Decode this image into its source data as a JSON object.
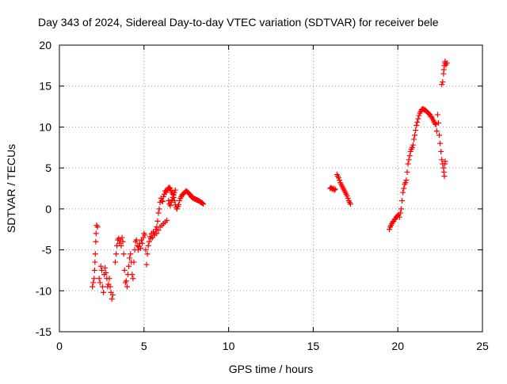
{
  "chart_data": {
    "type": "scatter",
    "title": "Day 343 of 2024, Sidereal Day-to-day VTEC variation (SDTVAR) for receiver bele",
    "xlabel": "GPS time / hours",
    "ylabel": "SDTVAR / TECUs",
    "xlim": [
      0,
      25
    ],
    "ylim": [
      -15,
      20
    ],
    "xticks": [
      0,
      5,
      10,
      15,
      20,
      25
    ],
    "yticks": [
      -15,
      -10,
      -5,
      0,
      5,
      10,
      15,
      20
    ],
    "grid": true,
    "marker": "plus",
    "color": "#ff0000",
    "segments": [
      {
        "name": "seg1",
        "points": [
          [
            1.95,
            -9.5
          ],
          [
            2.0,
            -9.0
          ],
          [
            2.05,
            -8.5
          ],
          [
            2.08,
            -7.5
          ],
          [
            2.1,
            -6.5
          ],
          [
            2.12,
            -5.5
          ],
          [
            2.15,
            -4.0
          ],
          [
            2.17,
            -3.0
          ],
          [
            2.2,
            -2.0
          ],
          [
            2.25,
            -2.2
          ]
        ]
      },
      {
        "name": "seg2",
        "points": [
          [
            2.35,
            -8.5
          ],
          [
            2.4,
            -9.0
          ],
          [
            2.45,
            -7.0
          ],
          [
            2.5,
            -7.5
          ],
          [
            2.55,
            -9.5
          ],
          [
            2.6,
            -10.2
          ],
          [
            2.65,
            -8.0
          ],
          [
            2.7,
            -7.2
          ],
          [
            2.75,
            -7.8
          ],
          [
            2.8,
            -8.5
          ],
          [
            2.85,
            -9.5
          ],
          [
            2.9,
            -9.2
          ],
          [
            2.95,
            -8.5
          ],
          [
            3.0,
            -9.5
          ],
          [
            3.05,
            -10.2
          ],
          [
            3.1,
            -11.0
          ],
          [
            3.15,
            -10.5
          ]
        ]
      },
      {
        "name": "seg3",
        "points": [
          [
            3.3,
            -6.5
          ],
          [
            3.35,
            -5.5
          ],
          [
            3.4,
            -4.5
          ],
          [
            3.45,
            -3.8
          ],
          [
            3.5,
            -3.6
          ],
          [
            3.55,
            -4.2
          ],
          [
            3.6,
            -3.8
          ],
          [
            3.65,
            -4.5
          ],
          [
            3.7,
            -3.5
          ],
          [
            3.75,
            -4.0
          ],
          [
            3.8,
            -5.5
          ],
          [
            3.85,
            -7.5
          ],
          [
            3.9,
            -9.0
          ],
          [
            3.95,
            -8.8
          ],
          [
            4.0,
            -9.5
          ],
          [
            4.05,
            -8.0
          ],
          [
            4.1,
            -7.0
          ],
          [
            4.15,
            -6.0
          ],
          [
            4.2,
            -5.5
          ],
          [
            4.25,
            -6.5
          ],
          [
            4.3,
            -8.0
          ],
          [
            4.35,
            -8.5
          ],
          [
            4.4,
            -6.5
          ],
          [
            4.45,
            -5.0
          ],
          [
            4.5,
            -4.0
          ],
          [
            4.55,
            -3.8
          ],
          [
            4.6,
            -4.5
          ],
          [
            4.65,
            -5.0
          ],
          [
            4.7,
            -4.6
          ],
          [
            4.75,
            -4.2
          ],
          [
            4.8,
            -4.8
          ],
          [
            4.85,
            -3.8
          ],
          [
            4.9,
            -4.2
          ],
          [
            4.95,
            -3.5
          ],
          [
            5.0,
            -3.0
          ],
          [
            5.05,
            -3.2
          ],
          [
            5.1,
            -5.0
          ],
          [
            5.15,
            -6.8
          ],
          [
            5.2,
            -5.5
          ],
          [
            5.25,
            -4.5
          ],
          [
            5.3,
            -4.0
          ],
          [
            5.35,
            -3.4
          ],
          [
            5.4,
            -3.6
          ],
          [
            5.45,
            -3.0
          ],
          [
            5.5,
            -3.5
          ],
          [
            5.55,
            -2.8
          ],
          [
            5.6,
            -3.2
          ],
          [
            5.65,
            -3.0
          ],
          [
            5.7,
            -2.5
          ],
          [
            5.75,
            -2.2
          ],
          [
            5.8,
            -1.5
          ],
          [
            5.85,
            -0.5
          ],
          [
            5.9,
            0.0
          ],
          [
            5.95,
            0.8
          ],
          [
            6.0,
            1.3
          ],
          [
            6.05,
            1.0
          ],
          [
            6.1,
            0.9
          ],
          [
            6.15,
            1.5
          ],
          [
            6.2,
            1.8
          ],
          [
            6.25,
            2.2
          ],
          [
            6.3,
            2.0
          ],
          [
            6.35,
            2.3
          ]
        ]
      },
      {
        "name": "seg4",
        "points": [
          [
            5.75,
            -3.0
          ],
          [
            5.85,
            -2.6
          ],
          [
            5.95,
            -2.2
          ],
          [
            6.05,
            -2.0
          ],
          [
            6.15,
            -1.8
          ],
          [
            6.25,
            -1.6
          ],
          [
            6.35,
            -1.4
          ]
        ]
      },
      {
        "name": "seg5",
        "points": [
          [
            6.4,
            2.4
          ],
          [
            6.45,
            2.6
          ],
          [
            6.5,
            2.6
          ],
          [
            6.55,
            2.5
          ],
          [
            6.6,
            2.2
          ],
          [
            6.65,
            2.0
          ],
          [
            6.7,
            1.8
          ],
          [
            6.75,
            1.4
          ],
          [
            6.8,
            1.0
          ],
          [
            6.85,
            0.5
          ],
          [
            6.9,
            0.2
          ],
          [
            6.95,
            0.0
          ],
          [
            7.0,
            0.3
          ],
          [
            7.05,
            0.5
          ],
          [
            7.1,
            1.0
          ],
          [
            7.15,
            1.3
          ],
          [
            7.2,
            1.5
          ],
          [
            7.25,
            1.7
          ],
          [
            7.3,
            1.8
          ],
          [
            7.35,
            1.9
          ],
          [
            7.4,
            2.0
          ],
          [
            7.45,
            2.1
          ],
          [
            7.5,
            2.2
          ],
          [
            7.55,
            2.1
          ],
          [
            7.6,
            2.0
          ],
          [
            7.65,
            1.9
          ],
          [
            7.7,
            1.8
          ],
          [
            7.75,
            1.7
          ],
          [
            7.8,
            1.5
          ],
          [
            7.85,
            1.4
          ],
          [
            7.9,
            1.3
          ],
          [
            7.95,
            1.3
          ],
          [
            8.0,
            1.2
          ],
          [
            8.05,
            1.2
          ],
          [
            8.1,
            1.1
          ],
          [
            8.15,
            1.1
          ],
          [
            8.2,
            1.0
          ],
          [
            8.25,
            1.0
          ],
          [
            8.3,
            0.9
          ],
          [
            8.35,
            0.8
          ],
          [
            8.4,
            0.8
          ],
          [
            8.45,
            0.7
          ],
          [
            8.5,
            0.6
          ]
        ]
      },
      {
        "name": "seg6",
        "points": [
          [
            6.45,
            1.0
          ],
          [
            6.5,
            0.6
          ],
          [
            6.55,
            0.4
          ],
          [
            6.6,
            0.8
          ],
          [
            6.65,
            1.1
          ],
          [
            6.7,
            1.4
          ],
          [
            6.75,
            1.7
          ],
          [
            6.8,
            2.0
          ],
          [
            6.85,
            2.3
          ]
        ]
      },
      {
        "name": "seg7",
        "points": [
          [
            16.0,
            2.5
          ],
          [
            16.05,
            2.6
          ],
          [
            16.1,
            2.5
          ],
          [
            16.15,
            2.4
          ],
          [
            16.2,
            2.5
          ],
          [
            16.25,
            2.3
          ],
          [
            16.3,
            2.4
          ]
        ]
      },
      {
        "name": "seg8",
        "points": [
          [
            16.4,
            4.2
          ],
          [
            16.45,
            4.0
          ],
          [
            16.5,
            3.8
          ],
          [
            16.55,
            3.5
          ],
          [
            16.6,
            3.2
          ],
          [
            16.65,
            3.0
          ],
          [
            16.7,
            2.8
          ],
          [
            16.75,
            2.6
          ],
          [
            16.8,
            2.4
          ],
          [
            16.85,
            2.2
          ],
          [
            16.9,
            2.0
          ],
          [
            16.95,
            1.8
          ],
          [
            17.0,
            1.6
          ],
          [
            17.05,
            1.3
          ],
          [
            17.1,
            1.0
          ],
          [
            17.15,
            0.8
          ],
          [
            17.2,
            0.6
          ]
        ]
      },
      {
        "name": "seg9",
        "points": [
          [
            19.5,
            -2.5
          ],
          [
            19.55,
            -2.2
          ],
          [
            19.6,
            -2.0
          ],
          [
            19.65,
            -1.8
          ],
          [
            19.7,
            -1.6
          ],
          [
            19.75,
            -1.5
          ],
          [
            19.8,
            -1.3
          ],
          [
            19.85,
            -1.2
          ],
          [
            19.9,
            -1.0
          ],
          [
            19.95,
            -0.9
          ],
          [
            20.0,
            -0.8
          ],
          [
            20.05,
            -0.7
          ],
          [
            20.1,
            -1.0
          ],
          [
            20.15,
            -0.5
          ],
          [
            20.2,
            0.0
          ],
          [
            20.25,
            1.0
          ],
          [
            20.3,
            2.0
          ],
          [
            20.35,
            2.5
          ],
          [
            20.4,
            3.0
          ],
          [
            20.45,
            3.2
          ],
          [
            20.5,
            3.5
          ],
          [
            20.55,
            4.5
          ],
          [
            20.6,
            5.5
          ],
          [
            20.65,
            6.0
          ],
          [
            20.7,
            6.5
          ],
          [
            20.75,
            7.0
          ],
          [
            20.8,
            7.3
          ],
          [
            20.85,
            7.5
          ],
          [
            20.9,
            7.8
          ],
          [
            20.95,
            8.5
          ],
          [
            21.0,
            9.0
          ],
          [
            21.05,
            9.6
          ],
          [
            21.1,
            10.2
          ],
          [
            21.15,
            10.6
          ],
          [
            21.2,
            11.0
          ],
          [
            21.25,
            11.4
          ],
          [
            21.3,
            11.7
          ],
          [
            21.35,
            11.9
          ],
          [
            21.4,
            12.1
          ],
          [
            21.45,
            12.2
          ],
          [
            21.5,
            12.2
          ],
          [
            21.55,
            12.1
          ],
          [
            21.6,
            12.1
          ],
          [
            21.65,
            12.0
          ],
          [
            21.7,
            11.9
          ],
          [
            21.75,
            11.8
          ],
          [
            21.8,
            11.7
          ],
          [
            21.85,
            11.6
          ],
          [
            21.9,
            11.5
          ],
          [
            21.95,
            11.3
          ],
          [
            22.0,
            11.2
          ],
          [
            22.05,
            11.0
          ],
          [
            22.1,
            10.8
          ],
          [
            22.15,
            10.6
          ],
          [
            22.2,
            10.4
          ],
          [
            22.25,
            10.3
          ],
          [
            22.3,
            9.5
          ],
          [
            22.35,
            11.5
          ],
          [
            22.4,
            10.5
          ],
          [
            22.45,
            9.0
          ],
          [
            22.5,
            8.0
          ],
          [
            22.55,
            7.0
          ],
          [
            22.6,
            6.0
          ],
          [
            22.65,
            5.5
          ],
          [
            22.7,
            5.0
          ],
          [
            22.72,
            4.5
          ],
          [
            22.75,
            4.0
          ],
          [
            22.78,
            5.5
          ],
          [
            22.8,
            5.8
          ]
        ]
      },
      {
        "name": "seg10",
        "points": [
          [
            22.6,
            15.2
          ],
          [
            22.65,
            15.5
          ],
          [
            22.7,
            16.5
          ],
          [
            22.72,
            17.0
          ],
          [
            22.75,
            17.5
          ],
          [
            22.78,
            17.8
          ],
          [
            22.8,
            18.0
          ],
          [
            22.85,
            17.6
          ],
          [
            22.9,
            17.8
          ]
        ]
      }
    ]
  }
}
